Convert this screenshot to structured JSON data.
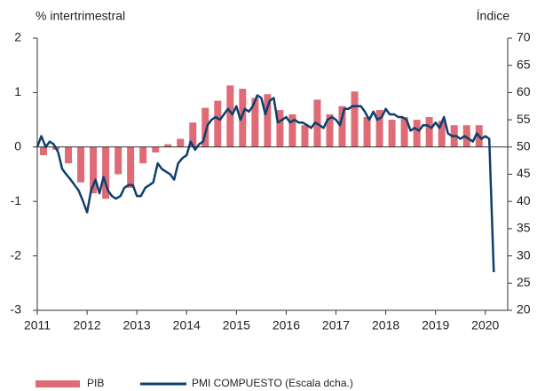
{
  "chart_data": {
    "type": "bar_line",
    "ylabel": "% intertrimestral",
    "y2label": "Índice",
    "xlim": [
      2011,
      2020.45
    ],
    "xticks": [
      2011,
      2012,
      2013,
      2014,
      2015,
      2016,
      2017,
      2018,
      2019,
      2020
    ],
    "ylim": [
      -3,
      2
    ],
    "yticks": [
      -3,
      -2,
      -1,
      0,
      1,
      2
    ],
    "y2lim": [
      20,
      70
    ],
    "y2ticks": [
      20,
      25,
      30,
      35,
      40,
      45,
      50,
      55,
      60,
      65,
      70
    ],
    "legend": "bottom",
    "series": [
      {
        "name": "PIB",
        "type": "bar",
        "color": "#de6b76",
        "x": [
          2011.125,
          2011.375,
          2011.625,
          2011.875,
          2012.125,
          2012.375,
          2012.625,
          2012.875,
          2013.125,
          2013.375,
          2013.625,
          2013.875,
          2014.125,
          2014.375,
          2014.625,
          2014.875,
          2015.125,
          2015.375,
          2015.625,
          2015.875,
          2016.125,
          2016.375,
          2016.625,
          2016.875,
          2017.125,
          2017.375,
          2017.625,
          2017.875,
          2018.125,
          2018.375,
          2018.625,
          2018.875,
          2019.125,
          2019.375,
          2019.625,
          2019.875
        ],
        "values": [
          -0.15,
          -0.05,
          -0.3,
          -0.65,
          -0.85,
          -0.95,
          -0.5,
          -0.75,
          -0.3,
          -0.1,
          0.05,
          0.15,
          0.45,
          0.72,
          0.85,
          1.13,
          1.07,
          0.9,
          0.97,
          0.68,
          0.6,
          0.4,
          0.87,
          0.6,
          0.75,
          1.02,
          0.55,
          0.68,
          0.5,
          0.55,
          0.5,
          0.55,
          0.48,
          0.4,
          0.4,
          0.4
        ]
      },
      {
        "name": "PMI COMPUESTO (Escala dcha.)",
        "type": "line",
        "axis": "y2",
        "color": "#0e3f6d",
        "x": [
          2011.0,
          2011.08,
          2011.17,
          2011.25,
          2011.33,
          2011.42,
          2011.5,
          2011.58,
          2011.67,
          2011.75,
          2011.83,
          2011.92,
          2012.0,
          2012.08,
          2012.17,
          2012.25,
          2012.33,
          2012.42,
          2012.5,
          2012.58,
          2012.67,
          2012.75,
          2012.83,
          2012.92,
          2013.0,
          2013.08,
          2013.17,
          2013.25,
          2013.33,
          2013.42,
          2013.5,
          2013.58,
          2013.67,
          2013.75,
          2013.83,
          2013.92,
          2014.0,
          2014.08,
          2014.17,
          2014.25,
          2014.33,
          2014.42,
          2014.5,
          2014.58,
          2014.67,
          2014.75,
          2014.83,
          2014.92,
          2015.0,
          2015.08,
          2015.17,
          2015.25,
          2015.33,
          2015.42,
          2015.5,
          2015.58,
          2015.67,
          2015.75,
          2015.83,
          2015.92,
          2016.0,
          2016.08,
          2016.17,
          2016.25,
          2016.33,
          2016.42,
          2016.5,
          2016.58,
          2016.67,
          2016.75,
          2016.83,
          2016.92,
          2017.0,
          2017.08,
          2017.17,
          2017.25,
          2017.33,
          2017.42,
          2017.5,
          2017.58,
          2017.67,
          2017.75,
          2017.83,
          2017.92,
          2018.0,
          2018.08,
          2018.17,
          2018.25,
          2018.33,
          2018.42,
          2018.5,
          2018.58,
          2018.67,
          2018.75,
          2018.83,
          2018.92,
          2019.0,
          2019.08,
          2019.17,
          2019.25,
          2019.33,
          2019.42,
          2019.5,
          2019.58,
          2019.67,
          2019.75,
          2019.83,
          2019.92,
          2020.0,
          2020.08,
          2020.17
        ],
        "values": [
          50,
          52,
          50,
          51,
          50.5,
          49,
          46,
          45,
          44,
          43,
          42,
          40,
          38,
          42,
          44,
          41.5,
          44.5,
          42,
          41,
          40.5,
          41,
          42.5,
          43,
          43,
          41,
          41,
          42.5,
          43,
          43.5,
          47,
          46,
          45.5,
          45,
          44,
          47,
          48,
          48.5,
          51,
          49.5,
          50.5,
          51,
          54,
          55,
          55.5,
          55,
          56,
          57,
          56,
          57.5,
          55,
          57,
          56.5,
          57.5,
          59.5,
          59,
          56,
          58.5,
          59,
          54.5,
          55,
          55.5,
          54.5,
          55,
          54.5,
          54.5,
          54,
          53.5,
          54.5,
          54,
          53.5,
          55,
          55.5,
          55,
          54,
          57,
          57,
          57.5,
          57.5,
          57.5,
          56.5,
          55,
          56.5,
          55,
          55.5,
          57,
          56,
          56,
          55.5,
          55.5,
          55,
          53,
          53.5,
          53,
          54,
          54,
          53.5,
          54.5,
          53.5,
          55.5,
          52.5,
          52,
          52,
          51.5,
          52,
          51.5,
          51,
          52.5,
          51.5,
          52,
          51.5,
          27
        ]
      }
    ]
  }
}
